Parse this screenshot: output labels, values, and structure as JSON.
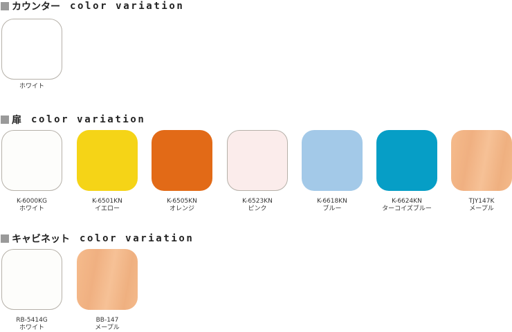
{
  "sections": [
    {
      "title": "カウンター",
      "subtitle": "color variation",
      "swatches": [
        {
          "code": "",
          "name": "ホワイト",
          "color": "#ffffff"
        }
      ]
    },
    {
      "title": "扉",
      "subtitle": "color variation",
      "swatches": [
        {
          "code": "K-6000KG",
          "name": "ホワイト",
          "color": "#fdfdfb"
        },
        {
          "code": "K-6501KN",
          "name": "イエロー",
          "color": "#f5d417"
        },
        {
          "code": "K-6505KN",
          "name": "オレンジ",
          "color": "#e26a17"
        },
        {
          "code": "K-6523KN",
          "name": "ピンク",
          "color": "#fbeceb"
        },
        {
          "code": "K-6618KN",
          "name": "ブルー",
          "color": "#a3c9e8"
        },
        {
          "code": "K-6624KN",
          "name": "ターコイズブルー",
          "color": "#069ec6"
        },
        {
          "code": "TJY147K",
          "name": "メープル",
          "color": "#f4b98a"
        }
      ]
    },
    {
      "title": "キャビネット",
      "subtitle": "color variation",
      "swatches": [
        {
          "code": "RB-5414G",
          "name": "ホワイト",
          "color": "#fdfdfb"
        },
        {
          "code": "BB-147",
          "name": "メープル",
          "color": "#f4b98a"
        }
      ]
    }
  ]
}
